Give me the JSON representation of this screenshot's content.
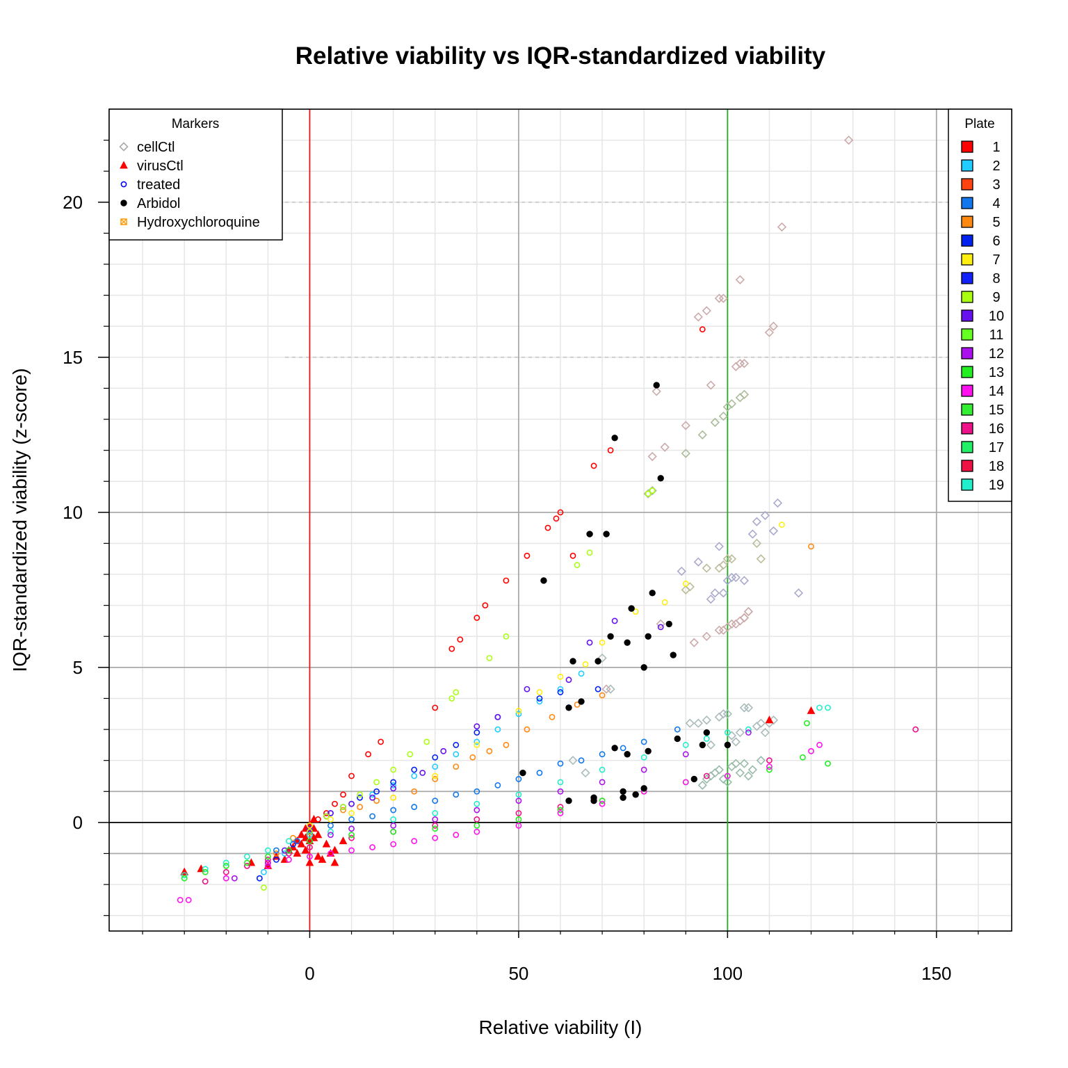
{
  "chart_data": {
    "type": "scatter",
    "title": "Relative viability vs IQR-standardized viability",
    "xlabel": "Relative viability (I)",
    "ylabel": "IQR-standardized viability (z-score)",
    "xlim": [
      -48,
      168
    ],
    "ylim": [
      -3.5,
      23.0
    ],
    "x_ticks": [
      0,
      50,
      100,
      150
    ],
    "y_ticks": [
      0,
      5,
      10,
      15,
      20
    ],
    "grid": true,
    "reference_lines": {
      "vertical": [
        {
          "x": 0,
          "color": "#ee1111"
        },
        {
          "x": 100,
          "color": "#22aa22"
        },
        {
          "x": 50,
          "color": "#aaaaaa"
        },
        {
          "x": 150,
          "color": "#aaaaaa"
        }
      ],
      "horizontal": [
        {
          "y": 0,
          "color": "#000000"
        },
        {
          "y": 1,
          "color": "#aaaaaa"
        },
        {
          "y": -1,
          "color": "#aaaaaa"
        },
        {
          "y": 5,
          "color": "#aaaaaa"
        },
        {
          "y": 10,
          "color": "#aaaaaa"
        },
        {
          "y": 15,
          "color": "#cccccc",
          "dashed": true
        },
        {
          "y": 20,
          "color": "#cccccc",
          "dashed": true
        }
      ]
    },
    "markers_legend": {
      "title": "Markers",
      "placement": "top-left",
      "entries": [
        {
          "label": "cellCtl",
          "shape": "diamond",
          "color": "#aaaaaa"
        },
        {
          "label": "virusCtl",
          "shape": "triangle",
          "color": "#ff0000"
        },
        {
          "label": "treated",
          "shape": "circle",
          "color": "#0000ff"
        },
        {
          "label": "Arbidol",
          "shape": "dot",
          "color": "#000000"
        },
        {
          "label": "Hydroxychloroquine",
          "shape": "boxx",
          "color": "#ff9900"
        }
      ]
    },
    "plate_legend": {
      "title": "Plate",
      "placement": "top-right",
      "entries": [
        {
          "label": "1",
          "color": "#ff0000"
        },
        {
          "label": "2",
          "color": "#22ccff"
        },
        {
          "label": "3",
          "color": "#ff4411"
        },
        {
          "label": "4",
          "color": "#1177ee"
        },
        {
          "label": "5",
          "color": "#ff8811"
        },
        {
          "label": "6",
          "color": "#0022ee"
        },
        {
          "label": "7",
          "color": "#ffee11"
        },
        {
          "label": "8",
          "color": "#1122ff"
        },
        {
          "label": "9",
          "color": "#aaff11"
        },
        {
          "label": "10",
          "color": "#6611ee"
        },
        {
          "label": "11",
          "color": "#66ff22"
        },
        {
          "label": "12",
          "color": "#aa11ee"
        },
        {
          "label": "13",
          "color": "#22ee22"
        },
        {
          "label": "14",
          "color": "#ff11ee"
        },
        {
          "label": "15",
          "color": "#33ee33"
        },
        {
          "label": "16",
          "color": "#ee1188"
        },
        {
          "label": "17",
          "color": "#22ee66"
        },
        {
          "label": "18",
          "color": "#ee1144"
        },
        {
          "label": "19",
          "color": "#22eecc"
        }
      ]
    },
    "series": [
      {
        "name": "cellCtl",
        "plate": "1",
        "marker": "diamond",
        "color": "#ccaaaa",
        "x": [
          82,
          83,
          85,
          90,
          93,
          95,
          96,
          98,
          99,
          102,
          103,
          103,
          104,
          110,
          111,
          113,
          129
        ],
        "y": [
          11.8,
          13.9,
          12.1,
          12.8,
          16.3,
          16.5,
          14.1,
          16.9,
          16.9,
          14.7,
          14.8,
          17.5,
          14.8,
          15.8,
          16.0,
          19.2,
          22.0
        ]
      },
      {
        "name": "cellCtl",
        "plate": "9",
        "marker": "diamond",
        "color": "#aabb99",
        "x": [
          81,
          82,
          90,
          94,
          97,
          99,
          100,
          101,
          103,
          104
        ],
        "y": [
          10.6,
          10.7,
          11.9,
          12.5,
          12.9,
          13.1,
          13.4,
          13.5,
          13.7,
          13.8
        ]
      },
      {
        "name": "cellCtl",
        "plate": "10",
        "marker": "diamond",
        "color": "#aaaacc",
        "x": [
          89,
          93,
          96,
          97,
          98,
          99,
          100,
          101,
          102,
          104,
          106,
          107,
          109,
          111,
          112,
          117
        ],
        "y": [
          8.1,
          8.4,
          7.2,
          7.4,
          8.9,
          7.4,
          7.8,
          7.9,
          7.9,
          7.8,
          9.3,
          9.7,
          9.9,
          9.4,
          10.3,
          7.4
        ]
      },
      {
        "name": "cellCtl",
        "plate": "7",
        "marker": "diamond",
        "color": "#bbbb99",
        "x": [
          90,
          91,
          95,
          98,
          99,
          100,
          101,
          104,
          105,
          107,
          108
        ],
        "y": [
          7.5,
          7.6,
          8.2,
          8.2,
          8.3,
          8.5,
          8.5,
          6.6,
          6.8,
          9.0,
          8.5
        ]
      },
      {
        "name": "cellCtl",
        "plate": "5",
        "marker": "diamond",
        "color": "#ccaaaa",
        "x": [
          71,
          84,
          92,
          95,
          98,
          99,
          100,
          101,
          102,
          103,
          104,
          105
        ],
        "y": [
          4.3,
          6.4,
          5.8,
          6.0,
          6.2,
          6.2,
          6.3,
          6.4,
          6.4,
          6.5,
          6.6,
          6.8
        ]
      },
      {
        "name": "cellCtl",
        "plate": "mid",
        "marker": "diamond",
        "color": "#aabbbb",
        "x": [
          63,
          66,
          70,
          72,
          91,
          93,
          95,
          96,
          98,
          99,
          100,
          101,
          102,
          103,
          104,
          105,
          107,
          108,
          109,
          110,
          111
        ],
        "y": [
          2.0,
          1.6,
          5.3,
          4.3,
          3.2,
          3.2,
          3.3,
          2.5,
          3.4,
          3.5,
          3.5,
          2.8,
          2.6,
          2.9,
          3.7,
          3.7,
          3.1,
          3.2,
          2.9,
          3.2,
          3.3
        ]
      },
      {
        "name": "cellCtl",
        "plate": "low",
        "marker": "diamond",
        "color": "#99bbaa",
        "x": [
          94,
          95,
          96,
          97,
          98,
          99,
          100,
          101,
          102,
          103,
          104,
          105,
          106,
          108
        ],
        "y": [
          1.2,
          1.4,
          1.5,
          1.6,
          1.7,
          1.4,
          1.3,
          1.8,
          1.9,
          1.6,
          1.9,
          1.5,
          1.7,
          2.0
        ]
      },
      {
        "name": "virusCtl",
        "plate": "all",
        "marker": "triangle",
        "color": "#ff0000",
        "x": [
          -30,
          -26,
          -14,
          -10,
          -8,
          -6,
          -5,
          -4,
          -3,
          -3,
          -2,
          -2,
          -1,
          -1,
          -1,
          0,
          0,
          0,
          0,
          1,
          1,
          1,
          2,
          2,
          3,
          4,
          5,
          6,
          6,
          8,
          110,
          120
        ],
        "y": [
          -1.6,
          -1.5,
          -1.3,
          -1.4,
          -1.1,
          -1.2,
          -0.9,
          -0.8,
          -1.0,
          -0.6,
          -0.7,
          -0.4,
          -0.5,
          -0.2,
          -0.9,
          -0.6,
          -0.3,
          -0.1,
          -1.3,
          -0.5,
          -0.2,
          0.1,
          -0.4,
          -1.1,
          -1.2,
          -0.7,
          -1.0,
          -0.9,
          -1.3,
          -0.6,
          3.3,
          3.6
        ]
      },
      {
        "name": "treated",
        "plate": "1",
        "marker": "circle",
        "color": "#ff0000",
        "x": [
          -10,
          -5,
          0,
          2,
          4,
          6,
          8,
          10,
          14,
          17,
          30,
          34,
          36,
          40,
          42,
          47,
          52,
          57,
          59,
          60,
          63,
          68,
          72,
          94
        ],
        "y": [
          -1.3,
          -0.9,
          -0.3,
          0.1,
          0.3,
          0.6,
          0.9,
          1.5,
          2.2,
          2.6,
          3.7,
          5.6,
          5.9,
          6.6,
          7.0,
          7.8,
          8.6,
          9.5,
          9.8,
          10.0,
          8.6,
          11.5,
          12.0,
          15.9
        ]
      },
      {
        "name": "treated",
        "plate": "5",
        "marker": "circle",
        "color": "#ff8811",
        "x": [
          -8,
          -4,
          0,
          4,
          8,
          12,
          16,
          20,
          25,
          30,
          35,
          39,
          43,
          47,
          52,
          58,
          64,
          70,
          120
        ],
        "y": [
          -1.0,
          -0.5,
          -0.1,
          0.2,
          0.4,
          0.5,
          0.7,
          0.8,
          1.0,
          1.4,
          1.8,
          2.1,
          2.3,
          2.5,
          3.0,
          3.4,
          3.8,
          4.1,
          8.9
        ]
      },
      {
        "name": "treated",
        "plate": "2",
        "marker": "circle",
        "color": "#22ccff",
        "x": [
          -11,
          -6,
          0,
          5,
          10,
          15,
          20,
          25,
          30,
          35,
          40,
          45,
          50,
          55,
          60,
          65
        ],
        "y": [
          -1.6,
          -1.0,
          -0.2,
          0.3,
          0.6,
          0.9,
          1.2,
          1.5,
          1.8,
          2.2,
          2.6,
          3.0,
          3.5,
          3.9,
          4.3,
          4.8
        ]
      },
      {
        "name": "treated",
        "plate": "6",
        "marker": "circle",
        "color": "#0022ee",
        "x": [
          -12,
          -8,
          -4,
          0,
          4,
          8,
          12,
          16,
          20,
          25,
          30,
          35,
          40,
          45,
          55,
          60,
          69
        ],
        "y": [
          -1.8,
          -1.2,
          -0.7,
          -0.3,
          0.2,
          0.5,
          0.8,
          1.0,
          1.3,
          1.7,
          2.1,
          2.5,
          2.9,
          3.4,
          4.0,
          4.2,
          4.3
        ]
      },
      {
        "name": "treated",
        "plate": "10",
        "marker": "circle",
        "color": "#6611ee",
        "x": [
          -6,
          0,
          5,
          10,
          15,
          20,
          27,
          32,
          40,
          45,
          52,
          62,
          67,
          73,
          84
        ],
        "y": [
          -0.9,
          -0.2,
          0.3,
          0.6,
          0.8,
          1.1,
          1.6,
          2.3,
          3.1,
          3.4,
          4.3,
          4.6,
          5.8,
          6.5,
          6.3
        ]
      },
      {
        "name": "treated",
        "plate": "9",
        "marker": "circle",
        "color": "#aaff11",
        "x": [
          -11,
          -5,
          0,
          4,
          8,
          12,
          16,
          20,
          24,
          28,
          34,
          35,
          43,
          47,
          64,
          67,
          81,
          82
        ],
        "y": [
          -2.1,
          -1.2,
          -0.3,
          0.2,
          0.5,
          0.9,
          1.3,
          1.7,
          2.2,
          2.6,
          4.0,
          4.2,
          5.3,
          6.0,
          8.3,
          8.7,
          10.6,
          10.7
        ]
      },
      {
        "name": "treated",
        "plate": "7",
        "marker": "circle",
        "color": "#ffee11",
        "x": [
          0,
          5,
          10,
          20,
          30,
          40,
          50,
          55,
          60,
          66,
          70,
          78,
          85,
          90,
          113
        ],
        "y": [
          -0.1,
          0.1,
          0.3,
          0.8,
          1.5,
          2.5,
          3.6,
          4.2,
          4.7,
          5.1,
          5.8,
          6.8,
          7.1,
          7.7,
          9.6
        ]
      },
      {
        "name": "treated",
        "plate": "4",
        "marker": "circle",
        "color": "#1177ee",
        "x": [
          -8,
          -3,
          0,
          5,
          10,
          15,
          20,
          25,
          30,
          35,
          40,
          45,
          50,
          55,
          60,
          65,
          70,
          75,
          80,
          88
        ],
        "y": [
          -0.9,
          -0.6,
          -0.4,
          -0.1,
          0.1,
          0.2,
          0.4,
          0.5,
          0.7,
          0.9,
          1.0,
          1.2,
          1.4,
          1.6,
          1.9,
          2.0,
          2.2,
          2.4,
          2.6,
          3.0
        ]
      },
      {
        "name": "treated",
        "plate": "19",
        "marker": "circle",
        "color": "#22eecc",
        "x": [
          -30,
          -25,
          -20,
          -15,
          -10,
          -5,
          0,
          5,
          10,
          20,
          30,
          40,
          50,
          60,
          70,
          80,
          90,
          95,
          100,
          105,
          122,
          124
        ],
        "y": [
          -1.7,
          -1.5,
          -1.3,
          -1.1,
          -0.9,
          -0.6,
          -0.4,
          -0.3,
          -0.2,
          0.1,
          0.3,
          0.6,
          0.9,
          1.3,
          1.7,
          2.1,
          2.5,
          2.7,
          2.9,
          3.0,
          3.7,
          3.7
        ]
      },
      {
        "name": "treated",
        "plate": "12",
        "marker": "circle",
        "color": "#aa11ee",
        "x": [
          -18,
          -10,
          -5,
          0,
          5,
          10,
          20,
          30,
          40,
          50,
          60,
          70,
          80,
          90,
          105
        ],
        "y": [
          -1.8,
          -1.3,
          -0.9,
          -0.6,
          -0.4,
          -0.2,
          -0.1,
          0.1,
          0.4,
          0.7,
          1.0,
          1.3,
          1.7,
          2.2,
          2.9
        ]
      },
      {
        "name": "treated",
        "plate": "16",
        "marker": "circle",
        "color": "#ee1188",
        "x": [
          -25,
          -20,
          -15,
          -10,
          -5,
          0,
          10,
          20,
          30,
          40,
          50,
          60,
          70,
          80,
          95,
          110,
          145
        ],
        "y": [
          -1.9,
          -1.6,
          -1.4,
          -1.2,
          -1.0,
          -0.8,
          -0.5,
          -0.3,
          -0.1,
          0.1,
          0.3,
          0.5,
          0.7,
          1.0,
          1.5,
          2.0,
          3.0
        ]
      },
      {
        "name": "treated",
        "plate": "13",
        "marker": "circle",
        "color": "#22ee22",
        "x": [
          -30,
          -25,
          -20,
          -15,
          -10,
          -5,
          0,
          10,
          20,
          30,
          40,
          50,
          60,
          70,
          80,
          90,
          100,
          110,
          118,
          119,
          124
        ],
        "y": [
          -1.8,
          -1.6,
          -1.4,
          -1.3,
          -1.1,
          -0.9,
          -0.6,
          -0.4,
          -0.3,
          -0.2,
          -0.1,
          0.1,
          0.4,
          0.7,
          1.0,
          1.3,
          1.5,
          1.7,
          2.1,
          3.2,
          1.9
        ]
      },
      {
        "name": "treated",
        "plate": "14",
        "marker": "circle",
        "color": "#ff11ee",
        "x": [
          -31,
          -29,
          -20,
          -10,
          -5,
          0,
          5,
          10,
          15,
          20,
          25,
          30,
          35,
          40,
          50,
          60,
          70,
          80,
          90,
          100,
          110,
          120,
          122
        ],
        "y": [
          -2.5,
          -2.5,
          -1.8,
          -1.4,
          -1.2,
          -1.1,
          -1.0,
          -0.9,
          -0.8,
          -0.7,
          -0.6,
          -0.5,
          -0.4,
          -0.3,
          -0.1,
          0.3,
          0.6,
          1.0,
          1.3,
          1.5,
          1.8,
          2.3,
          2.5
        ]
      },
      {
        "name": "Arbidol",
        "plate": "all",
        "marker": "dot",
        "color": "#000000",
        "x": [
          51,
          56,
          62,
          63,
          65,
          67,
          68,
          69,
          71,
          72,
          73,
          75,
          76,
          77,
          78,
          80,
          81,
          82,
          83,
          84,
          86,
          87,
          88,
          92,
          94,
          95,
          100,
          68,
          73,
          75,
          76,
          80,
          81,
          62
        ],
        "y": [
          1.6,
          7.8,
          3.7,
          5.2,
          3.9,
          9.3,
          0.7,
          5.2,
          9.3,
          6.0,
          12.4,
          0.8,
          5.8,
          6.9,
          0.9,
          5.0,
          6.0,
          7.4,
          14.1,
          11.1,
          6.4,
          5.4,
          2.7,
          1.4,
          2.5,
          2.9,
          2.5,
          0.8,
          2.4,
          1.0,
          2.2,
          1.1,
          2.3,
          0.7
        ]
      }
    ]
  }
}
